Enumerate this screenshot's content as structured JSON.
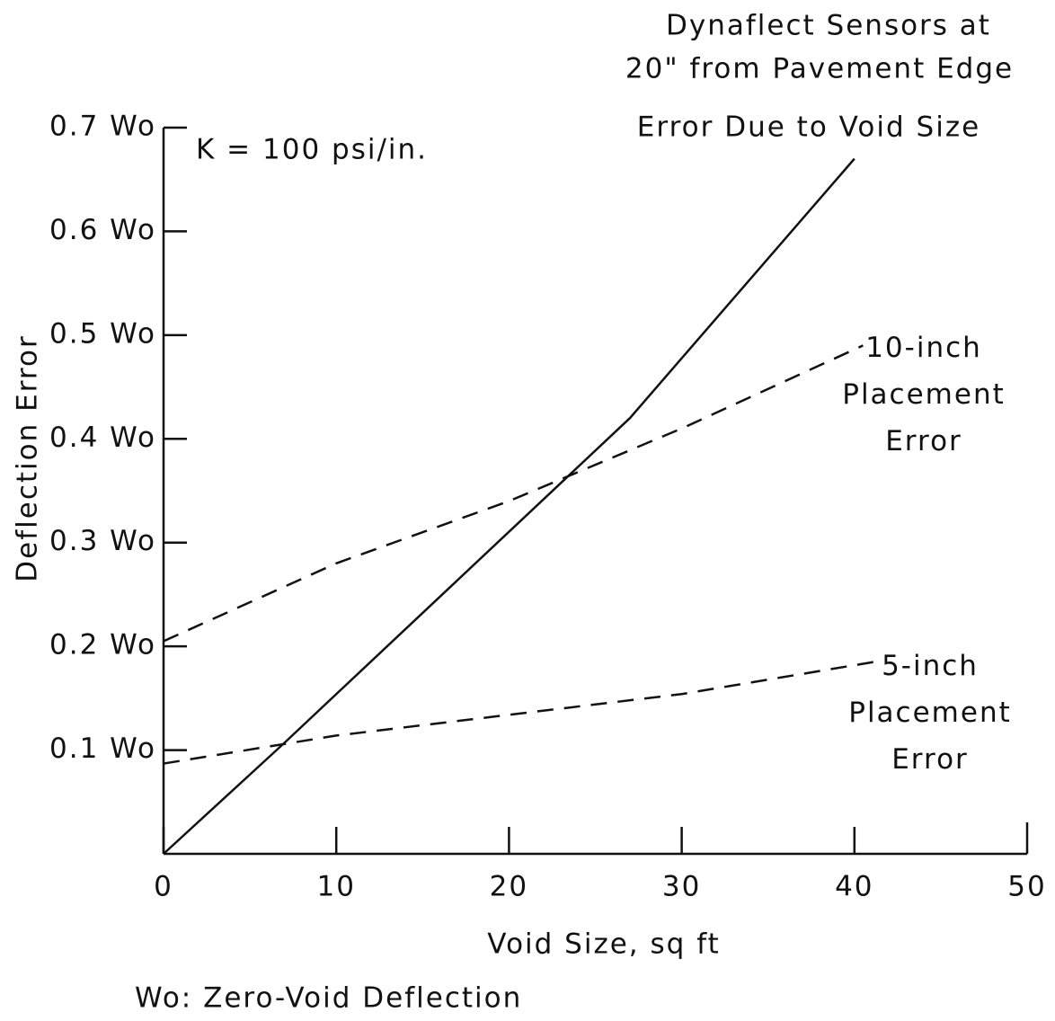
{
  "chart_data": {
    "type": "line",
    "title": [
      "Dynaflect Sensors at",
      "20\" from Pavement Edge"
    ],
    "annotations": [
      "K = 100 psi/in."
    ],
    "xlabel": "Void Size, sq ft",
    "ylabel": "Deflection Error",
    "footnote": "Wo: Zero-Void Deflection",
    "xlim": [
      0,
      50
    ],
    "xticks": [
      0,
      10,
      20,
      30,
      40,
      50
    ],
    "ylim": [
      0,
      0.7
    ],
    "yticks": [
      {
        "value": 0.1,
        "label": "0.1 Wo"
      },
      {
        "value": 0.2,
        "label": "0.2 Wo"
      },
      {
        "value": 0.3,
        "label": "0.3 Wo"
      },
      {
        "value": 0.4,
        "label": "0.4 Wo"
      },
      {
        "value": 0.5,
        "label": "0.5 Wo"
      },
      {
        "value": 0.6,
        "label": "0.6 Wo"
      },
      {
        "value": 0.7,
        "label": "0.7 Wo"
      }
    ],
    "series": [
      {
        "name": "Error Due to Void Size",
        "color": "#111111",
        "style": "solid",
        "x": [
          0,
          7,
          27,
          40
        ],
        "values": [
          0,
          0.107,
          0.42,
          0.67
        ]
      },
      {
        "name": "10-inch Placement Error",
        "color": "#111111",
        "style": "dashed",
        "x": [
          0,
          10,
          20,
          30,
          40.5
        ],
        "values": [
          0.205,
          0.28,
          0.34,
          0.41,
          0.49
        ]
      },
      {
        "name": "5-inch Placement Error",
        "color": "#111111",
        "style": "dashed",
        "x": [
          0,
          10,
          20,
          30,
          41.5
        ],
        "values": [
          0.087,
          0.114,
          0.134,
          0.154,
          0.186
        ]
      }
    ]
  }
}
